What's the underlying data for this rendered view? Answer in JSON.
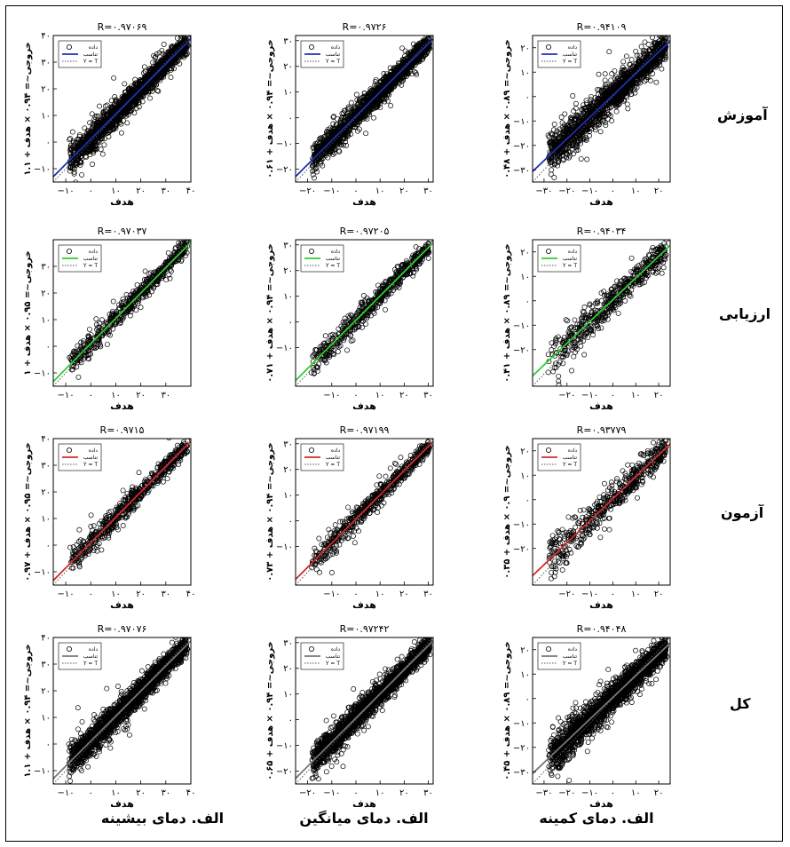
{
  "rows": [
    {
      "label": "آموزش",
      "color": "#1f2fb0"
    },
    {
      "label": "ارزیابی",
      "color": "#33cc33"
    },
    {
      "label": "آزمون",
      "color": "#d42a2a"
    },
    {
      "label": "کل",
      "color": "#777777"
    }
  ],
  "columns": [
    {
      "label": "الف. دمای بیشینه"
    },
    {
      "label": "الف. دمای میانگین"
    },
    {
      "label": "الف. دمای کمینه"
    }
  ],
  "legend": {
    "data": "داده",
    "fit": "تناسب",
    "identity": "Y = T"
  },
  "chart_data": [
    {
      "type": "scatter",
      "title": "R=۰.۹۷۰۶۹",
      "xlabel": "هدف",
      "ylabel": "خروجی~= ۰.۹۴ × هدف + ۱.۱",
      "xlim": [
        -15,
        40
      ],
      "ylim": [
        -15,
        40
      ],
      "xticks": [
        -10,
        0,
        10,
        20,
        30,
        40
      ],
      "yticks": [
        -10,
        0,
        10,
        20,
        30,
        40
      ],
      "xtick_labels": [
        "−۱۰",
        "۰",
        "۱۰",
        "۲۰",
        "۳۰",
        "۴۰"
      ],
      "ytick_labels": [
        "−۱۰",
        "۰",
        "۱۰",
        "۲۰",
        "۳۰",
        "۴۰"
      ],
      "fit": {
        "slope": 0.94,
        "intercept": 1.1
      },
      "R": 0.97069,
      "row": 0,
      "col": 0,
      "npoints": 1800,
      "noise": 3.0
    },
    {
      "type": "scatter",
      "title": "R=۰.۹۷۲۶",
      "xlabel": "هدف",
      "ylabel": "خروجی~= ۰.۹۴ × هدف + ۰.۶۱",
      "xlim": [
        -25,
        32
      ],
      "ylim": [
        -25,
        32
      ],
      "xticks": [
        -20,
        -10,
        0,
        10,
        20,
        30
      ],
      "yticks": [
        -20,
        -10,
        0,
        10,
        20,
        30
      ],
      "xtick_labels": [
        "−۲۰",
        "−۱۰",
        "۰",
        "۱۰",
        "۲۰",
        "۳۰"
      ],
      "ytick_labels": [
        "−۲۰",
        "−۱۰",
        "۰",
        "۱۰",
        "۲۰",
        "۳۰"
      ],
      "fit": {
        "slope": 0.94,
        "intercept": 0.61
      },
      "R": 0.9726,
      "row": 0,
      "col": 1,
      "npoints": 1800,
      "noise": 2.8
    },
    {
      "type": "scatter",
      "title": "R=۰.۹۴۱۰۹",
      "xlabel": "هدف",
      "ylabel": "خروجی~= ۰.۸۹ × هدف + ۰.۴۸",
      "xlim": [
        -35,
        25
      ],
      "ylim": [
        -35,
        25
      ],
      "xticks": [
        -30,
        -20,
        -10,
        0,
        10,
        20
      ],
      "yticks": [
        -30,
        -20,
        -10,
        0,
        10,
        20
      ],
      "xtick_labels": [
        "−۳۰",
        "−۲۰",
        "−۱۰",
        "۰",
        "۱۰",
        "۲۰"
      ],
      "ytick_labels": [
        "−۳۰",
        "−۲۰",
        "−۱۰",
        "۰",
        "۱۰",
        "۲۰"
      ],
      "fit": {
        "slope": 0.89,
        "intercept": 0.48
      },
      "R": 0.94109,
      "row": 0,
      "col": 2,
      "npoints": 1600,
      "noise": 4.2
    },
    {
      "type": "scatter",
      "title": "R=۰.۹۷۰۳۷",
      "xlabel": "هدف",
      "ylabel": "خروجی~= ۰.۹۵ × هدف + ۱",
      "xlim": [
        -15,
        40
      ],
      "ylim": [
        -15,
        40
      ],
      "xticks": [
        -10,
        0,
        10,
        20,
        30
      ],
      "yticks": [
        -10,
        0,
        10,
        20,
        30
      ],
      "xtick_labels": [
        "−۱۰",
        "۰",
        "۱۰",
        "۲۰",
        "۳۰"
      ],
      "ytick_labels": [
        "−۱۰",
        "۰",
        "۱۰",
        "۲۰",
        "۳۰"
      ],
      "fit": {
        "slope": 0.95,
        "intercept": 1
      },
      "R": 0.97037,
      "row": 1,
      "col": 0,
      "npoints": 600,
      "noise": 2.6
    },
    {
      "type": "scatter",
      "title": "R=۰.۹۷۲۰۵",
      "xlabel": "هدف",
      "ylabel": "خروجی~= ۰.۹۴ × هدف + ۰.۷۱",
      "xlim": [
        -25,
        32
      ],
      "ylim": [
        -25,
        32
      ],
      "xticks": [
        -10,
        0,
        10,
        20,
        30
      ],
      "yticks": [
        -10,
        0,
        10,
        20,
        30
      ],
      "xtick_labels": [
        "−۱۰",
        "۰",
        "۱۰",
        "۲۰",
        "۳۰"
      ],
      "ytick_labels": [
        "−۱۰",
        "۰",
        "۱۰",
        "۲۰",
        "۳۰"
      ],
      "fit": {
        "slope": 0.94,
        "intercept": 0.71
      },
      "R": 0.97205,
      "row": 1,
      "col": 1,
      "npoints": 600,
      "noise": 2.6
    },
    {
      "type": "scatter",
      "title": "R=۰.۹۴۰۳۴",
      "xlabel": "هدف",
      "ylabel": "خروجی~= ۰.۸۹ × هدف + ۰.۴۱",
      "xlim": [
        -35,
        25
      ],
      "ylim": [
        -35,
        25
      ],
      "xticks": [
        -20,
        -10,
        0,
        10,
        20
      ],
      "yticks": [
        -20,
        -10,
        0,
        10,
        20
      ],
      "xtick_labels": [
        "−۲۰",
        "−۱۰",
        "۰",
        "۱۰",
        "۲۰"
      ],
      "ytick_labels": [
        "−۲۰",
        "−۱۰",
        "۰",
        "۱۰",
        "۲۰"
      ],
      "fit": {
        "slope": 0.89,
        "intercept": 0.41
      },
      "R": 0.94034,
      "row": 1,
      "col": 2,
      "npoints": 550,
      "noise": 4.0
    },
    {
      "type": "scatter",
      "title": "R=۰.۹۷۱۵",
      "xlabel": "هدف",
      "ylabel": "خروجی~= ۰.۹۵ × هدف + ۰.۹۷",
      "xlim": [
        -15,
        40
      ],
      "ylim": [
        -15,
        40
      ],
      "xticks": [
        -10,
        0,
        10,
        20,
        30,
        40
      ],
      "yticks": [
        -10,
        0,
        10,
        20,
        30,
        40
      ],
      "xtick_labels": [
        "−۱۰",
        "۰",
        "۱۰",
        "۲۰",
        "۳۰",
        "۴۰"
      ],
      "ytick_labels": [
        "−۱۰",
        "۰",
        "۱۰",
        "۲۰",
        "۳۰",
        "۴۰"
      ],
      "fit": {
        "slope": 0.95,
        "intercept": 0.97
      },
      "R": 0.9715,
      "row": 2,
      "col": 0,
      "npoints": 600,
      "noise": 2.7
    },
    {
      "type": "scatter",
      "title": "R=۰.۹۷۱۹۹",
      "xlabel": "هدف",
      "ylabel": "خروجی~= ۰.۹۴ × هدف + ۰.۷۳",
      "xlim": [
        -25,
        32
      ],
      "ylim": [
        -25,
        32
      ],
      "xticks": [
        -10,
        0,
        10,
        20,
        30
      ],
      "yticks": [
        -10,
        0,
        10,
        20,
        30
      ],
      "xtick_labels": [
        "−۱۰",
        "۰",
        "۱۰",
        "۲۰",
        "۳۰"
      ],
      "ytick_labels": [
        "−۱۰",
        "۰",
        "۱۰",
        "۲۰",
        "۳۰"
      ],
      "fit": {
        "slope": 0.94,
        "intercept": 0.73
      },
      "R": 0.97199,
      "row": 2,
      "col": 1,
      "npoints": 600,
      "noise": 2.6
    },
    {
      "type": "scatter",
      "title": "R=۰.۹۳۷۷۹",
      "xlabel": "هدف",
      "ylabel": "خروجی~= ۰.۹ × هدف + ۰.۳۵",
      "xlim": [
        -35,
        25
      ],
      "ylim": [
        -35,
        25
      ],
      "xticks": [
        -20,
        -10,
        0,
        10,
        20
      ],
      "yticks": [
        -20,
        -10,
        0,
        10,
        20
      ],
      "xtick_labels": [
        "−۲۰",
        "−۱۰",
        "۰",
        "۱۰",
        "۲۰"
      ],
      "ytick_labels": [
        "−۲۰",
        "−۱۰",
        "۰",
        "۱۰",
        "۲۰"
      ],
      "fit": {
        "slope": 0.9,
        "intercept": 0.35
      },
      "R": 0.93779,
      "row": 2,
      "col": 2,
      "npoints": 550,
      "noise": 4.3
    },
    {
      "type": "scatter",
      "title": "R=۰.۹۷۰۷۶",
      "xlabel": "هدف",
      "ylabel": "خروجی~= ۰.۹۴ × هدف + ۱.۱",
      "xlim": [
        -15,
        40
      ],
      "ylim": [
        -15,
        40
      ],
      "xticks": [
        -10,
        0,
        10,
        20,
        30,
        40
      ],
      "yticks": [
        -10,
        0,
        10,
        20,
        30,
        40
      ],
      "xtick_labels": [
        "−۱۰",
        "۰",
        "۱۰",
        "۲۰",
        "۳۰",
        "۴۰"
      ],
      "ytick_labels": [
        "−۱۰",
        "۰",
        "۱۰",
        "۲۰",
        "۳۰",
        "۴۰"
      ],
      "fit": {
        "slope": 0.94,
        "intercept": 1.1
      },
      "R": 0.97076,
      "row": 3,
      "col": 0,
      "npoints": 2200,
      "noise": 3.0
    },
    {
      "type": "scatter",
      "title": "R=۰.۹۷۲۴۲",
      "xlabel": "هدف",
      "ylabel": "خروجی~= ۰.۹۴ × هدف + ۰.۶۵",
      "xlim": [
        -25,
        32
      ],
      "ylim": [
        -25,
        32
      ],
      "xticks": [
        -20,
        -10,
        0,
        10,
        20,
        30
      ],
      "yticks": [
        -20,
        -10,
        0,
        10,
        20,
        30
      ],
      "xtick_labels": [
        "−۲۰",
        "−۱۰",
        "۰",
        "۱۰",
        "۲۰",
        "۳۰"
      ],
      "ytick_labels": [
        "−۲۰",
        "−۱۰",
        "۰",
        "۱۰",
        "۲۰",
        "۳۰"
      ],
      "fit": {
        "slope": 0.94,
        "intercept": 0.65
      },
      "R": 0.97242,
      "row": 3,
      "col": 1,
      "npoints": 2200,
      "noise": 2.8
    },
    {
      "type": "scatter",
      "title": "R=۰.۹۴۰۴۸",
      "xlabel": "هدف",
      "ylabel": "خروجی~= ۰.۸۹ × هدف + ۰.۴۵",
      "xlim": [
        -35,
        25
      ],
      "ylim": [
        -35,
        25
      ],
      "xticks": [
        -30,
        -20,
        -10,
        0,
        10,
        20
      ],
      "yticks": [
        -30,
        -20,
        -10,
        0,
        10,
        20
      ],
      "xtick_labels": [
        "−۳۰",
        "−۲۰",
        "−۱۰",
        "۰",
        "۱۰",
        "۲۰"
      ],
      "ytick_labels": [
        "−۳۰",
        "−۲۰",
        "−۱۰",
        "۰",
        "۱۰",
        "۲۰"
      ],
      "fit": {
        "slope": 0.89,
        "intercept": 0.45
      },
      "R": 0.94048,
      "row": 3,
      "col": 2,
      "npoints": 2000,
      "noise": 4.2
    }
  ]
}
